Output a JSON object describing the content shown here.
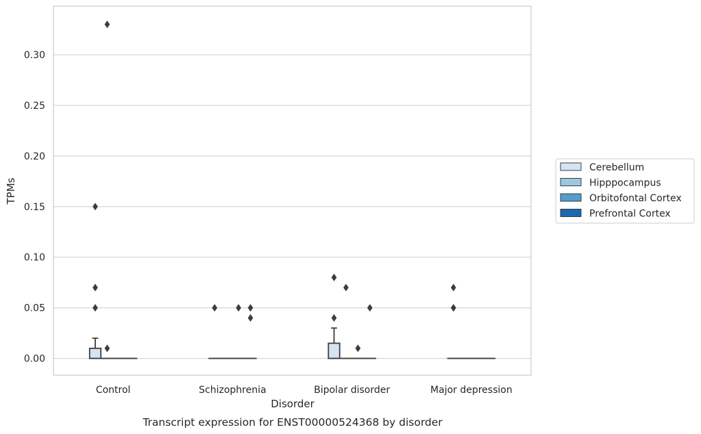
{
  "chart_data": {
    "type": "box",
    "title": "",
    "caption": "Transcript expression for ENST00000524368 by disorder",
    "xlabel": "Disorder",
    "ylabel": "TPMs",
    "ylim": [
      -0.0165,
      0.348
    ],
    "yticks": [
      "0.00",
      "0.05",
      "0.10",
      "0.15",
      "0.20",
      "0.25",
      "0.30"
    ],
    "grid": "horizontal",
    "legend_position": "right",
    "categories": [
      "Control",
      "Schizophrenia",
      "Bipolar disorder",
      "Major depression"
    ],
    "series": [
      {
        "name": "Cerebellum",
        "color": "#d4e4f2",
        "boxes": [
          {
            "q1": 0.0,
            "median": 0.0,
            "q3": 0.01,
            "whisker_low": 0.0,
            "whisker_high": 0.02,
            "outliers": [
              0.05,
              0.07,
              0.15
            ]
          },
          {
            "q1": 0.0,
            "median": 0.0,
            "q3": 0.0,
            "whisker_low": 0.0,
            "whisker_high": 0.0,
            "outliers": [
              0.05
            ]
          },
          {
            "q1": 0.0,
            "median": 0.0,
            "q3": 0.015,
            "whisker_low": 0.0,
            "whisker_high": 0.03,
            "outliers": [
              0.04,
              0.08
            ]
          },
          {
            "q1": 0.0,
            "median": 0.0,
            "q3": 0.0,
            "whisker_low": 0.0,
            "whisker_high": 0.0,
            "outliers": [
              0.05,
              0.05,
              0.07
            ]
          }
        ]
      },
      {
        "name": "Hipppocampus",
        "color": "#9ac8e0",
        "boxes": [
          {
            "q1": 0.0,
            "median": 0.0,
            "q3": 0.0,
            "whisker_low": 0.0,
            "whisker_high": 0.0,
            "outliers": [
              0.01,
              0.33
            ]
          },
          {
            "q1": 0.0,
            "median": 0.0,
            "q3": 0.0,
            "whisker_low": 0.0,
            "whisker_high": 0.0,
            "outliers": []
          },
          {
            "q1": 0.0,
            "median": 0.0,
            "q3": 0.0,
            "whisker_low": 0.0,
            "whisker_high": 0.0,
            "outliers": [
              0.07
            ]
          },
          {
            "q1": 0.0,
            "median": 0.0,
            "q3": 0.0,
            "whisker_low": 0.0,
            "whisker_high": 0.0,
            "outliers": []
          }
        ]
      },
      {
        "name": "Orbitofontal Cortex",
        "color": "#529dcc",
        "boxes": [
          {
            "q1": 0.0,
            "median": 0.0,
            "q3": 0.0,
            "whisker_low": 0.0,
            "whisker_high": 0.0,
            "outliers": []
          },
          {
            "q1": 0.0,
            "median": 0.0,
            "q3": 0.0,
            "whisker_low": 0.0,
            "whisker_high": 0.0,
            "outliers": [
              0.05
            ]
          },
          {
            "q1": 0.0,
            "median": 0.0,
            "q3": 0.0,
            "whisker_low": 0.0,
            "whisker_high": 0.0,
            "outliers": [
              0.01
            ]
          },
          {
            "q1": 0.0,
            "median": 0.0,
            "q3": 0.0,
            "whisker_low": 0.0,
            "whisker_high": 0.0,
            "outliers": []
          }
        ]
      },
      {
        "name": "Prefrontal Cortex",
        "color": "#1c6aaf",
        "boxes": [
          {
            "q1": 0.0,
            "median": 0.0,
            "q3": 0.0,
            "whisker_low": 0.0,
            "whisker_high": 0.0,
            "outliers": []
          },
          {
            "q1": 0.0,
            "median": 0.0,
            "q3": 0.0,
            "whisker_low": 0.0,
            "whisker_high": 0.0,
            "outliers": [
              0.04,
              0.05
            ]
          },
          {
            "q1": 0.0,
            "median": 0.0,
            "q3": 0.0,
            "whisker_low": 0.0,
            "whisker_high": 0.0,
            "outliers": [
              0.05
            ]
          },
          {
            "q1": 0.0,
            "median": 0.0,
            "q3": 0.0,
            "whisker_low": 0.0,
            "whisker_high": 0.0,
            "outliers": []
          }
        ]
      }
    ]
  }
}
